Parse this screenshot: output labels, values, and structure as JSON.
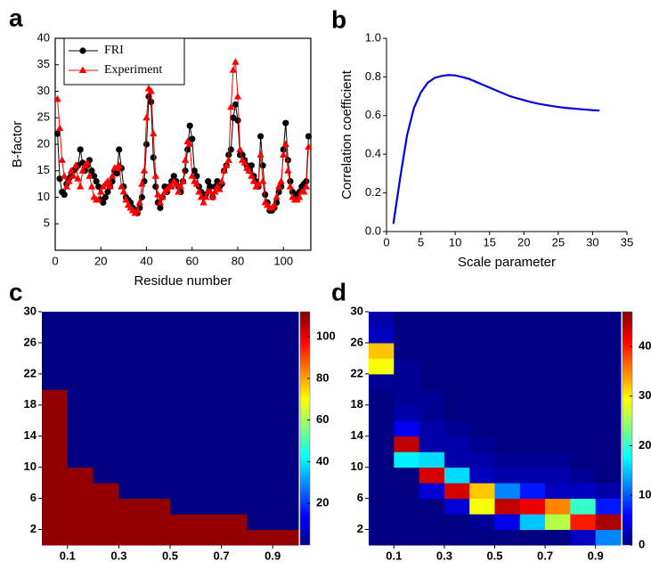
{
  "chart_data": [
    {
      "type": "line",
      "panel_label": "a",
      "xlabel": "Residue number",
      "ylabel": "B-factor",
      "x": [
        1,
        2,
        3,
        4,
        5,
        6,
        7,
        8,
        9,
        10,
        11,
        12,
        13,
        14,
        15,
        16,
        17,
        18,
        19,
        20,
        21,
        22,
        23,
        24,
        25,
        26,
        27,
        28,
        29,
        30,
        31,
        32,
        33,
        34,
        35,
        36,
        37,
        38,
        39,
        40,
        41,
        42,
        43,
        44,
        45,
        46,
        47,
        48,
        49,
        50,
        51,
        52,
        53,
        54,
        55,
        56,
        57,
        58,
        59,
        60,
        61,
        62,
        63,
        64,
        65,
        66,
        67,
        68,
        69,
        70,
        71,
        72,
        73,
        74,
        75,
        76,
        77,
        78,
        79,
        80,
        81,
        82,
        83,
        84,
        85,
        86,
        87,
        88,
        89,
        90,
        91,
        92,
        93,
        94,
        95,
        96,
        97,
        98,
        99,
        100,
        101,
        102,
        103,
        104,
        105,
        106,
        107,
        108,
        109,
        110,
        111
      ],
      "series": [
        {
          "name": "FRI",
          "color": "#000000",
          "marker": "circle",
          "values": [
            22,
            13.5,
            11,
            10.5,
            12.5,
            13.5,
            14,
            15,
            15.5,
            16,
            19,
            16.5,
            15,
            16,
            17,
            15,
            14,
            13,
            12,
            9.5,
            9,
            10,
            11,
            12,
            13,
            15,
            14.5,
            19,
            15.5,
            12,
            10,
            9.5,
            9,
            8,
            7.5,
            7,
            8,
            10,
            13,
            20,
            29,
            28,
            17.5,
            12,
            9,
            8,
            10,
            12,
            11,
            12,
            13,
            14,
            13,
            12,
            11,
            13,
            15,
            19,
            23.5,
            21,
            15,
            14,
            12,
            11,
            10,
            10.5,
            13,
            12,
            10,
            12,
            13,
            12,
            12.5,
            15,
            16,
            18,
            19,
            25,
            27.5,
            24.5,
            18,
            18,
            17,
            16,
            15,
            16,
            14,
            13,
            12,
            21.5,
            16,
            10.5,
            9,
            7.5,
            7.5,
            8,
            9,
            11,
            12,
            19,
            24,
            17,
            13,
            11,
            10,
            10.5,
            11,
            12,
            12.5,
            13,
            21.5
          ]
        },
        {
          "name": "Experiment",
          "color": "#ff0000",
          "marker": "triangle",
          "values": [
            28.5,
            23,
            17,
            14,
            12,
            13,
            15,
            14,
            16,
            13.5,
            12,
            15,
            16,
            16.5,
            14,
            12,
            10,
            9.5,
            9.5,
            11,
            12,
            12.5,
            13,
            12,
            14,
            15.5,
            15.5,
            16,
            12,
            11,
            9.5,
            8.5,
            8,
            7.5,
            7,
            7.5,
            9,
            12.5,
            15,
            25,
            30.5,
            30,
            22,
            14,
            10.5,
            9,
            10,
            11,
            11.5,
            12,
            12,
            13,
            12.5,
            11,
            12,
            13,
            17,
            20.5,
            20,
            14,
            13,
            12.5,
            11,
            10,
            9,
            10,
            11,
            11,
            10,
            11,
            12,
            11.5,
            13,
            15,
            16,
            17,
            27,
            34,
            35.5,
            29,
            19,
            17,
            16.5,
            15.5,
            15,
            14,
            13,
            12,
            12.5,
            18,
            13,
            9,
            8.5,
            8,
            8,
            8.5,
            10,
            12,
            13,
            18,
            20,
            15,
            12,
            10,
            9.5,
            9.5,
            10,
            11,
            11,
            12,
            19.5
          ]
        }
      ],
      "xlim": [
        0,
        112
      ],
      "ylim": [
        0,
        40
      ],
      "xticks": [
        0,
        20,
        40,
        60,
        80,
        100
      ],
      "yticks": [
        5,
        10,
        15,
        20,
        25,
        30,
        35,
        40
      ],
      "legend": "upper left"
    },
    {
      "type": "line",
      "panel_label": "b",
      "xlabel": "Scale parameter",
      "ylabel": "Correlation coefficient",
      "x": [
        1,
        2,
        3,
        4,
        5,
        6,
        7,
        8,
        9,
        10,
        11,
        12,
        13,
        14,
        15,
        16,
        17,
        18,
        19,
        20,
        21,
        22,
        23,
        24,
        25,
        26,
        27,
        28,
        29,
        30,
        31
      ],
      "values": [
        0.04,
        0.28,
        0.5,
        0.64,
        0.72,
        0.77,
        0.795,
        0.805,
        0.81,
        0.808,
        0.8,
        0.79,
        0.775,
        0.76,
        0.745,
        0.73,
        0.715,
        0.7,
        0.69,
        0.68,
        0.67,
        0.662,
        0.656,
        0.65,
        0.645,
        0.64,
        0.637,
        0.634,
        0.631,
        0.628,
        0.626
      ],
      "color": "#0000e6",
      "xlim": [
        0,
        35
      ],
      "ylim": [
        0,
        1
      ],
      "xticks": [
        0,
        5,
        10,
        15,
        20,
        25,
        30,
        35
      ],
      "yticks": [
        {
          "value": 0,
          "label": "0.0"
        },
        0.2,
        0.4,
        0.6,
        0.8,
        {
          "value": 1,
          "label": "1.0"
        }
      ]
    },
    {
      "type": "heatmap",
      "panel_label": "c",
      "colormap": "jet",
      "x": [
        0.05,
        0.15,
        0.25,
        0.35,
        0.45,
        0.55,
        0.65,
        0.75,
        0.85,
        0.95
      ],
      "y": [
        1,
        3,
        5,
        7,
        9,
        11,
        13,
        15,
        17,
        19,
        21,
        23,
        25,
        27,
        29
      ],
      "values": [
        [
          110,
          110,
          110,
          110,
          110,
          110,
          110,
          110,
          110,
          110,
          0,
          0,
          0,
          0,
          0
        ],
        [
          110,
          110,
          110,
          110,
          110,
          0,
          0,
          0,
          0,
          0,
          0,
          0,
          0,
          0,
          0
        ],
        [
          110,
          110,
          110,
          110,
          0,
          0,
          0,
          0,
          0,
          0,
          0,
          0,
          0,
          0,
          0
        ],
        [
          110,
          110,
          110,
          0,
          0,
          0,
          0,
          0,
          0,
          0,
          0,
          0,
          0,
          0,
          0
        ],
        [
          110,
          110,
          110,
          0,
          0,
          0,
          0,
          0,
          0,
          0,
          0,
          0,
          0,
          0,
          0
        ],
        [
          110,
          110,
          0,
          0,
          0,
          0,
          0,
          0,
          0,
          0,
          0,
          0,
          0,
          0,
          0
        ],
        [
          110,
          110,
          0,
          0,
          0,
          0,
          0,
          0,
          0,
          0,
          0,
          0,
          0,
          0,
          0
        ],
        [
          110,
          110,
          0,
          0,
          0,
          0,
          0,
          0,
          0,
          0,
          0,
          0,
          0,
          0,
          0
        ],
        [
          110,
          0,
          0,
          0,
          0,
          0,
          0,
          0,
          0,
          0,
          0,
          0,
          0,
          0,
          0
        ],
        [
          110,
          0,
          0,
          0,
          0,
          0,
          0,
          0,
          0,
          0,
          0,
          0,
          0,
          0,
          0
        ]
      ],
      "xlim": [
        0,
        1
      ],
      "ylim": [
        0,
        30
      ],
      "xticks": [
        0.1,
        0.3,
        0.5,
        0.7,
        0.9
      ],
      "yticks": [
        2,
        6,
        10,
        14,
        18,
        22,
        26,
        30
      ],
      "zlim": [
        0,
        112
      ],
      "zticks": [
        20,
        40,
        60,
        80,
        100
      ]
    },
    {
      "type": "heatmap",
      "panel_label": "d",
      "colormap": "jet",
      "x": [
        0.05,
        0.15,
        0.25,
        0.35,
        0.45,
        0.55,
        0.65,
        0.75,
        0.85,
        0.95
      ],
      "y": [
        1,
        3,
        5,
        7,
        9,
        11,
        13,
        15,
        17,
        19,
        21,
        23,
        25,
        27,
        29
      ],
      "values": [
        [
          0,
          0,
          0,
          0,
          0,
          0,
          0,
          0,
          0,
          0,
          1,
          29,
          32,
          3,
          2
        ],
        [
          0,
          0,
          0,
          0,
          0,
          17,
          44,
          5,
          2,
          1,
          1,
          1,
          0,
          0,
          0
        ],
        [
          0,
          0,
          0,
          4,
          43,
          16,
          2,
          2,
          1,
          1,
          0,
          0,
          0,
          0,
          0
        ],
        [
          0,
          0,
          4,
          43,
          16,
          2,
          2,
          1,
          0,
          0,
          0,
          0,
          0,
          0,
          0
        ],
        [
          0,
          1,
          29,
          32,
          3,
          2,
          1,
          0,
          0,
          0,
          0,
          0,
          0,
          0,
          0
        ],
        [
          0,
          5,
          44,
          12,
          2,
          1,
          0,
          0,
          0,
          0,
          0,
          0,
          0,
          0,
          0
        ],
        [
          0,
          15,
          42,
          7,
          2,
          1,
          0,
          0,
          0,
          0,
          0,
          0,
          0,
          0,
          0
        ],
        [
          0,
          26,
          35,
          3,
          2,
          1,
          0,
          0,
          0,
          0,
          0,
          0,
          0,
          0,
          0
        ],
        [
          3,
          40,
          20,
          3,
          1,
          0,
          0,
          0,
          0,
          0,
          0,
          0,
          0,
          0,
          0
        ],
        [
          12,
          45,
          7,
          2,
          0,
          0,
          0,
          0,
          0,
          0,
          0,
          0,
          0,
          0,
          0
        ]
      ],
      "xlim": [
        0,
        1
      ],
      "ylim": [
        0,
        30
      ],
      "xticks": [
        0.1,
        0.3,
        0.5,
        0.7,
        0.9
      ],
      "yticks": [
        2,
        6,
        10,
        14,
        18,
        22,
        26,
        30
      ],
      "zlim": [
        0,
        47
      ],
      "zticks": [
        0,
        10,
        20,
        30,
        40
      ]
    }
  ]
}
